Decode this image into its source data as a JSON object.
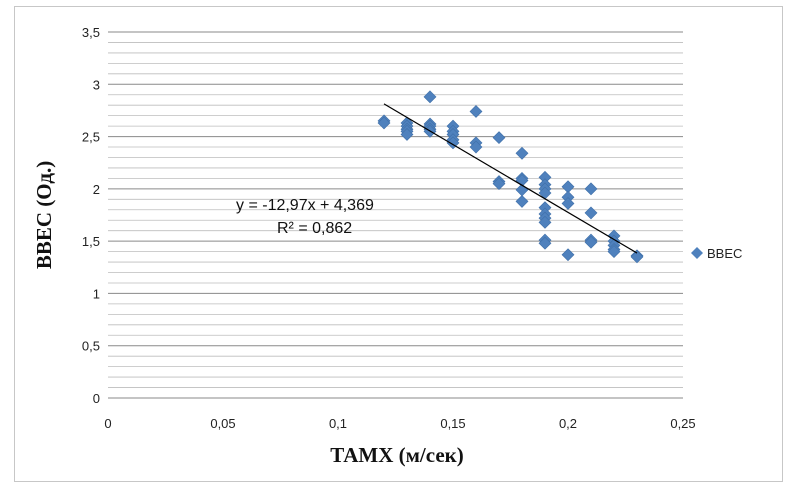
{
  "chart_data": {
    "type": "scatter",
    "title": "",
    "xlabel": "ТАМХ (м/сек)",
    "ylabel": "ВВЕС (Од.)",
    "xlim": [
      0,
      0.25
    ],
    "ylim": [
      0,
      3.5
    ],
    "x_ticks": [
      "0",
      "0,05",
      "0,1",
      "0,15",
      "0,2",
      "0,25"
    ],
    "y_ticks": [
      "0",
      "0,5",
      "1",
      "1,5",
      "2",
      "2,5",
      "3",
      "3,5"
    ],
    "grid": "horizontal major and minor",
    "legend_position": "right",
    "series": [
      {
        "name": "ВВЕС",
        "color": "#4f81bd",
        "marker": "diamond",
        "points": [
          [
            0.12,
            2.65
          ],
          [
            0.12,
            2.63
          ],
          [
            0.13,
            2.63
          ],
          [
            0.13,
            2.6
          ],
          [
            0.13,
            2.57
          ],
          [
            0.13,
            2.55
          ],
          [
            0.13,
            2.52
          ],
          [
            0.14,
            2.88
          ],
          [
            0.14,
            2.62
          ],
          [
            0.14,
            2.6
          ],
          [
            0.14,
            2.57
          ],
          [
            0.14,
            2.55
          ],
          [
            0.15,
            2.6
          ],
          [
            0.15,
            2.55
          ],
          [
            0.15,
            2.52
          ],
          [
            0.15,
            2.47
          ],
          [
            0.15,
            2.44
          ],
          [
            0.16,
            2.74
          ],
          [
            0.16,
            2.44
          ],
          [
            0.16,
            2.4
          ],
          [
            0.17,
            2.49
          ],
          [
            0.17,
            2.07
          ],
          [
            0.17,
            2.05
          ],
          [
            0.18,
            2.34
          ],
          [
            0.18,
            2.1
          ],
          [
            0.18,
            2.08
          ],
          [
            0.18,
            1.99
          ],
          [
            0.18,
            1.88
          ],
          [
            0.19,
            2.11
          ],
          [
            0.19,
            2.04
          ],
          [
            0.19,
            2.0
          ],
          [
            0.19,
            1.96
          ],
          [
            0.19,
            1.82
          ],
          [
            0.19,
            1.76
          ],
          [
            0.19,
            1.72
          ],
          [
            0.19,
            1.68
          ],
          [
            0.19,
            1.51
          ],
          [
            0.19,
            1.48
          ],
          [
            0.2,
            2.02
          ],
          [
            0.2,
            1.92
          ],
          [
            0.2,
            1.86
          ],
          [
            0.2,
            1.37
          ],
          [
            0.21,
            2.0
          ],
          [
            0.21,
            1.77
          ],
          [
            0.21,
            1.51
          ],
          [
            0.21,
            1.49
          ],
          [
            0.22,
            1.55
          ],
          [
            0.22,
            1.5
          ],
          [
            0.22,
            1.46
          ],
          [
            0.22,
            1.42
          ],
          [
            0.22,
            1.4
          ],
          [
            0.23,
            1.36
          ],
          [
            0.23,
            1.35
          ]
        ]
      }
    ],
    "trendline": {
      "slope": -12.97,
      "intercept": 4.369,
      "x_range": [
        0.12,
        0.23
      ],
      "color": "#000000",
      "equation_label": "y = -12,97x + 4,369",
      "r2_label": "R² = 0,862"
    }
  }
}
